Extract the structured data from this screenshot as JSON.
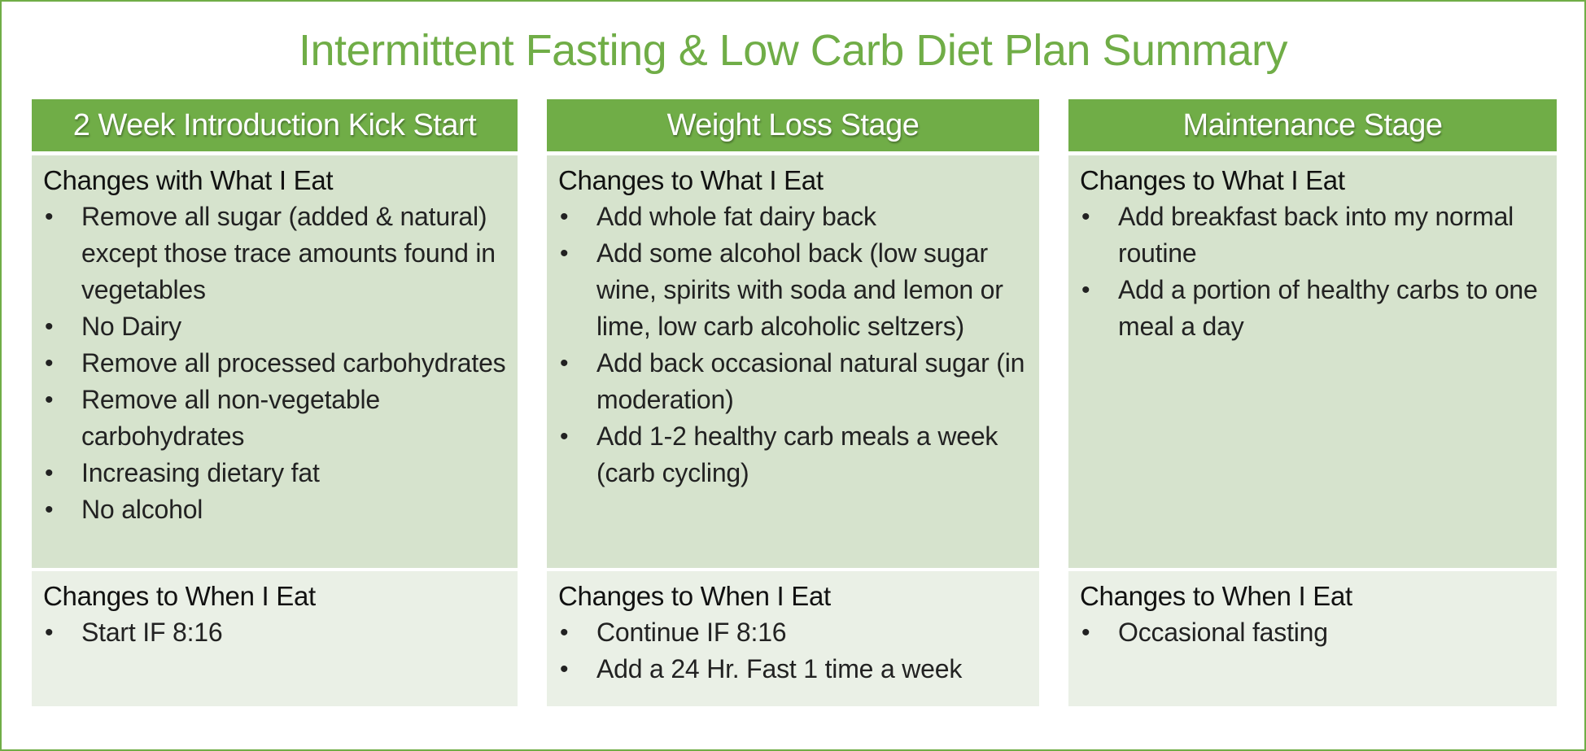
{
  "title": "Intermittent Fasting & Low Carb Diet Plan Summary",
  "stages": [
    {
      "header": "2 Week Introduction Kick Start",
      "what": {
        "title": "Changes with What I Eat",
        "items": [
          "Remove all sugar (added & natural) except those trace amounts found in vegetables",
          "No Dairy",
          "Remove all processed carbohydrates",
          "Remove all non-vegetable carbohydrates",
          "Increasing dietary fat",
          "No alcohol"
        ]
      },
      "when": {
        "title": "Changes to When I Eat",
        "items": [
          "Start IF 8:16"
        ]
      }
    },
    {
      "header": "Weight Loss Stage",
      "what": {
        "title": "Changes to What I Eat",
        "items": [
          "Add whole fat dairy back",
          "Add some alcohol back (low sugar wine, spirits with soda and lemon or lime, low carb alcoholic seltzers)",
          "Add back occasional natural sugar (in moderation)",
          "Add 1-2 healthy carb meals a week (carb cycling)"
        ]
      },
      "when": {
        "title": "Changes to When I Eat",
        "items": [
          "Continue IF 8:16",
          "Add a 24 Hr. Fast 1 time a week"
        ]
      }
    },
    {
      "header": "Maintenance Stage",
      "what": {
        "title": "Changes to What I Eat",
        "items": [
          "Add breakfast back into my normal routine",
          "Add a portion of healthy carbs to one meal a day"
        ]
      },
      "when": {
        "title": "Changes to When I Eat",
        "items": [
          "Occasional fasting"
        ]
      }
    }
  ],
  "colors": {
    "accent": "#70ad47",
    "what_bg": "#d6e3cd",
    "when_bg": "#eaf0e6"
  }
}
